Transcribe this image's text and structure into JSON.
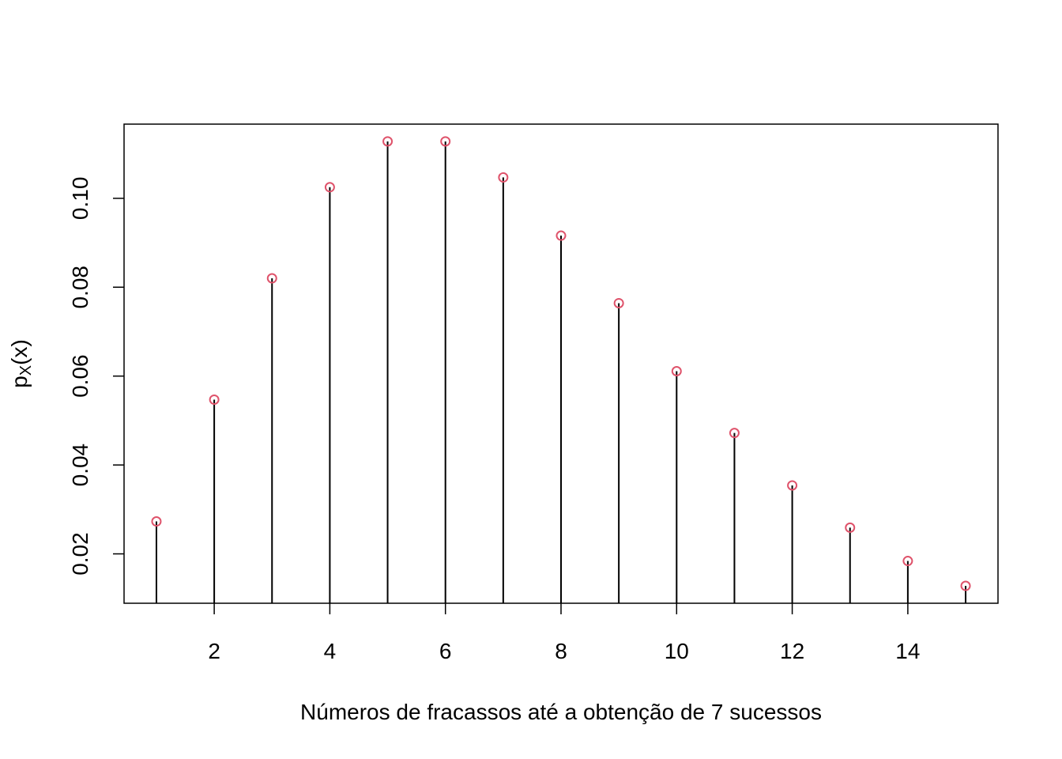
{
  "chart_data": {
    "type": "scatter",
    "style": "stems",
    "xlabel": "Números de fracassos até a obtenção de 7 sucessos",
    "ylabel": {
      "base": "p",
      "subscript": "X",
      "suffix": "(x)"
    },
    "x": [
      1,
      2,
      3,
      4,
      5,
      6,
      7,
      8,
      9,
      10,
      11,
      12,
      13,
      14,
      15
    ],
    "y": [
      0.0273,
      0.0547,
      0.082,
      0.1025,
      0.1128,
      0.1128,
      0.1047,
      0.0916,
      0.0764,
      0.0611,
      0.0472,
      0.0354,
      0.0259,
      0.0184,
      0.0128
    ],
    "xlim": [
      0.44,
      15.56
    ],
    "ylim": [
      0.00889,
      0.11669
    ],
    "xticks": [
      2,
      4,
      6,
      8,
      10,
      12,
      14
    ],
    "xtick_labels": [
      "2",
      "4",
      "6",
      "8",
      "10",
      "12",
      "14"
    ],
    "yticks": [
      0.02,
      0.04,
      0.06,
      0.08,
      0.1
    ],
    "ytick_labels": [
      "0.02",
      "0.04",
      "0.06",
      "0.08",
      "0.10"
    ],
    "grid": false,
    "colors": {
      "point": "#DF536B",
      "stem": "#000000",
      "frame": "#000000"
    }
  }
}
